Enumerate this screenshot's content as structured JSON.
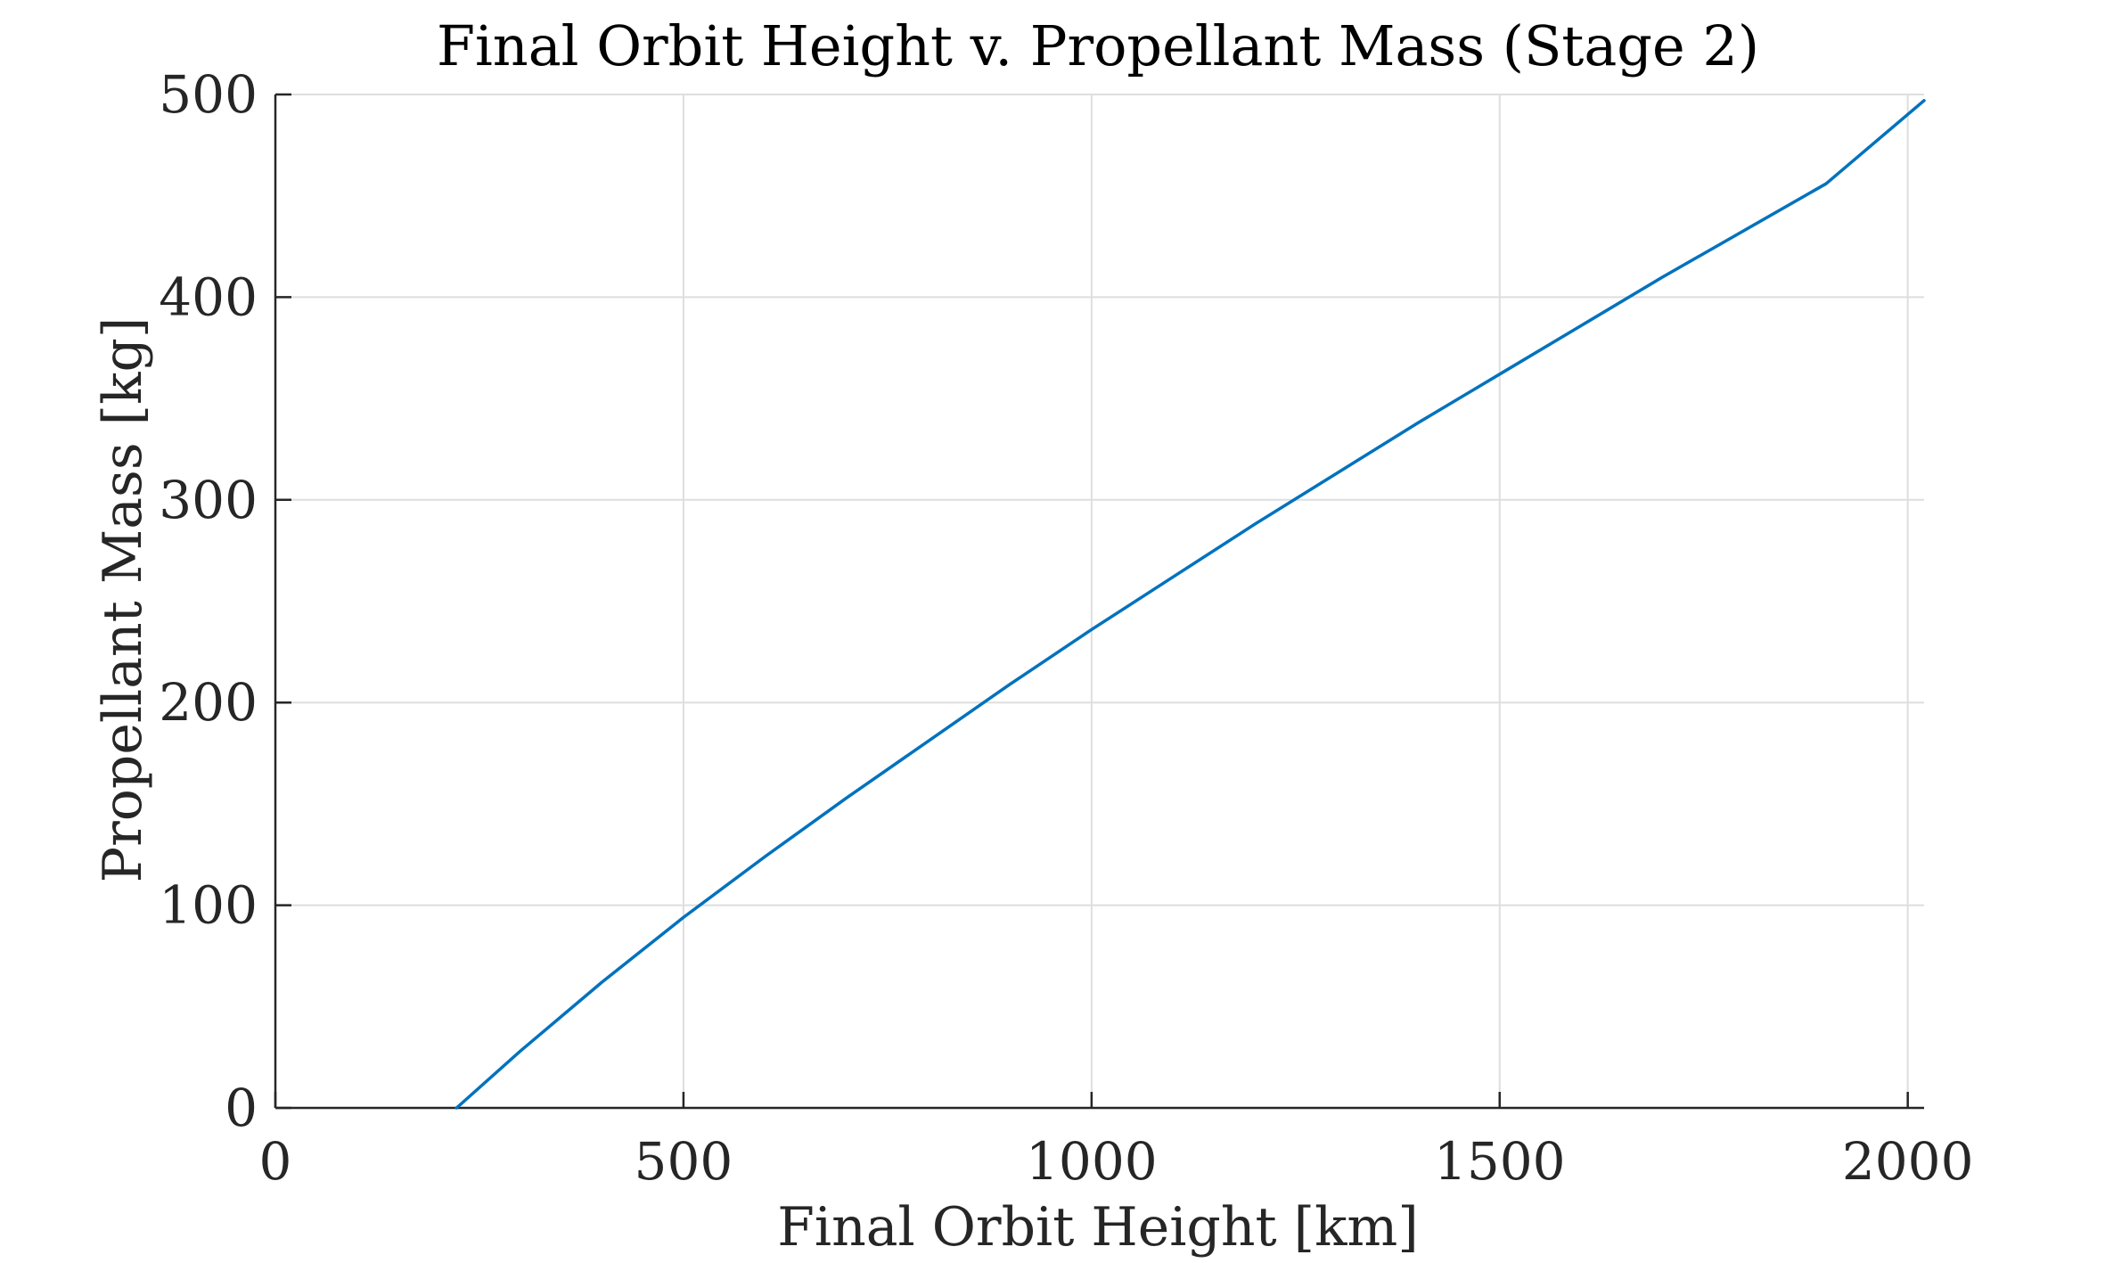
{
  "chart_data": {
    "type": "line",
    "title": "Final Orbit Height v. Propellant Mass (Stage 2)",
    "xlabel": "Final Orbit Height [km]",
    "ylabel": "Propellant Mass [kg]",
    "xlim": [
      0,
      2020
    ],
    "ylim": [
      0,
      500
    ],
    "xticks": [
      0,
      500,
      1000,
      1500,
      2000
    ],
    "yticks": [
      0,
      100,
      200,
      300,
      400,
      500
    ],
    "grid": true,
    "colors": {
      "series": "#0072BD",
      "axis": "#262626",
      "grid": "#dedede"
    },
    "series": [
      {
        "x": [
          222,
          300,
          400,
          500,
          600,
          700,
          800,
          900,
          1000,
          1100,
          1200,
          1300,
          1400,
          1500,
          1600,
          1700,
          1800,
          1900,
          2020
        ],
        "y": [
          0,
          28,
          62,
          94,
          124,
          153,
          181,
          209,
          236,
          262,
          288,
          313,
          338,
          362,
          386,
          410,
          433,
          456,
          497
        ]
      }
    ]
  }
}
